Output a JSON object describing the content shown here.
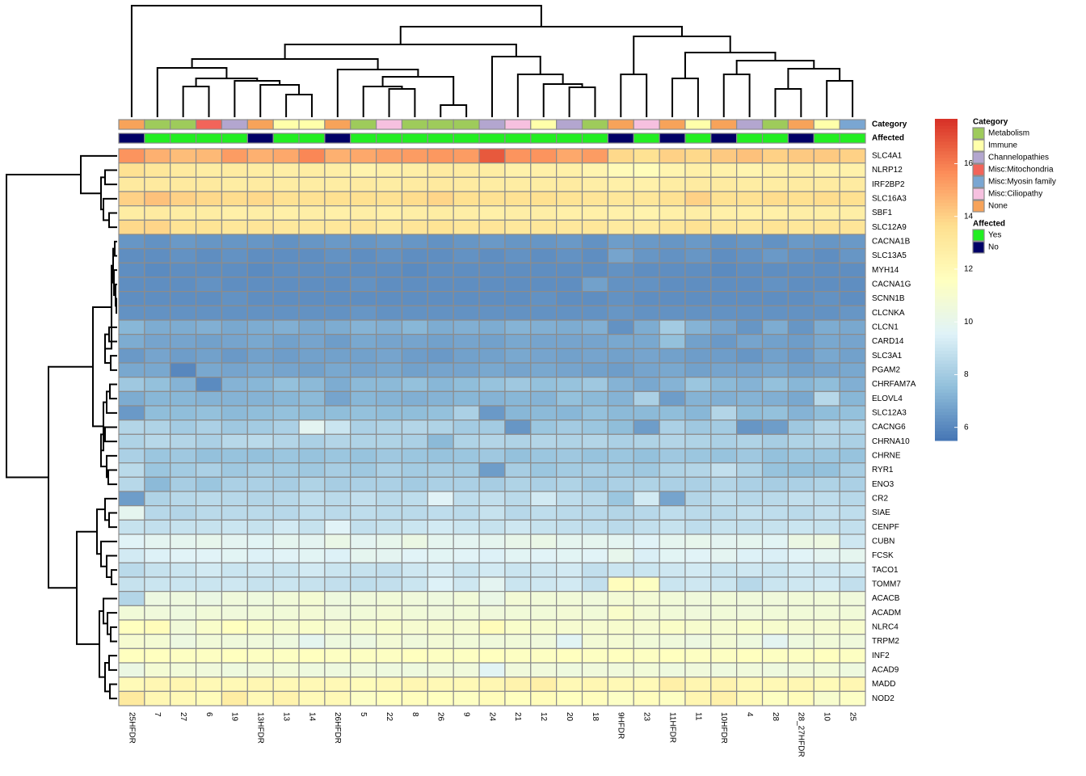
{
  "chart_data": {
    "type": "heatmap",
    "columns": [
      "25HFDR",
      "7",
      "27",
      "6",
      "19",
      "13HFDR",
      "13",
      "14",
      "26HFDR",
      "5",
      "22",
      "8",
      "26",
      "9",
      "24",
      "21",
      "12",
      "20",
      "18",
      "9HFDR",
      "23",
      "11HFDR",
      "11",
      "10HFDR",
      "4",
      "28",
      "28_27HFDR",
      "10",
      "25"
    ],
    "rows": [
      "SLC4A1",
      "NLRP12",
      "IRF2BP2",
      "SLC16A3",
      "SBF1",
      "SLC12A9",
      "CACNA1B",
      "SLC13A5",
      "MYH14",
      "CACNA1G",
      "SCNN1B",
      "CLCNKA",
      "CLCN1",
      "CARD14",
      "SLC3A1",
      "PGAM2",
      "CHRFAM7A",
      "ELOVL4",
      "SLC12A3",
      "CACNG6",
      "CHRNA10",
      "CHRNE",
      "RYR1",
      "ENO3",
      "CR2",
      "SIAE",
      "CENPF",
      "CUBN",
      "FCSK",
      "TACO1",
      "TOMM7",
      "ACACB",
      "ACADM",
      "NLRC4",
      "TRPM2",
      "INF2",
      "ACAD9",
      "MADD",
      "NOD2"
    ],
    "values": [
      [
        15.5,
        14.8,
        14.5,
        14.6,
        15.3,
        14.8,
        15.0,
        15.8,
        14.8,
        15.0,
        15.2,
        15.3,
        15.4,
        15.3,
        16.8,
        15.5,
        15.5,
        15.0,
        15.3,
        13.8,
        13.5,
        14.0,
        13.8,
        14.2,
        14.4,
        14.0,
        14.2,
        14.2,
        14.0
      ],
      [
        13.5,
        13.2,
        13.0,
        12.8,
        12.9,
        12.8,
        12.7,
        12.8,
        12.7,
        12.4,
        12.6,
        12.7,
        12.9,
        12.9,
        12.8,
        12.5,
        12.6,
        12.6,
        12.3,
        11.9,
        11.8,
        12.3,
        12.6,
        12.5,
        12.3,
        12.6,
        12.7,
        12.5,
        12.5
      ],
      [
        13.0,
        13.0,
        13.0,
        13.0,
        12.8,
        12.9,
        12.8,
        12.8,
        12.8,
        12.9,
        12.8,
        12.9,
        13.0,
        12.9,
        12.8,
        12.8,
        12.8,
        12.9,
        12.7,
        12.6,
        12.5,
        12.8,
        12.9,
        12.9,
        12.8,
        12.8,
        12.9,
        12.9,
        12.9
      ],
      [
        14.0,
        14.4,
        14.0,
        13.8,
        13.7,
        13.8,
        13.5,
        13.5,
        13.6,
        13.6,
        13.5,
        13.7,
        13.9,
        13.6,
        13.5,
        13.5,
        13.6,
        13.4,
        13.3,
        13.2,
        13.2,
        13.5,
        14.0,
        13.5,
        13.5,
        13.7,
        13.6,
        13.7,
        13.6
      ],
      [
        12.8,
        12.9,
        12.8,
        12.8,
        12.6,
        12.7,
        12.6,
        12.7,
        12.6,
        12.7,
        12.6,
        12.7,
        12.8,
        12.7,
        12.6,
        12.7,
        12.7,
        12.6,
        12.6,
        12.5,
        12.4,
        12.6,
        12.7,
        12.6,
        12.6,
        12.6,
        12.7,
        12.7,
        12.7
      ],
      [
        13.8,
        13.9,
        13.4,
        13.4,
        13.2,
        13.3,
        13.1,
        13.1,
        13.2,
        13.3,
        13.0,
        13.3,
        13.4,
        13.2,
        13.3,
        13.1,
        13.2,
        13.1,
        13.2,
        13.0,
        12.9,
        13.2,
        13.5,
        13.2,
        13.1,
        13.4,
        13.2,
        13.3,
        13.3
      ],
      [
        6.4,
        6.3,
        6.5,
        6.4,
        6.4,
        6.4,
        6.3,
        6.4,
        6.5,
        6.4,
        6.5,
        6.4,
        6.3,
        6.4,
        6.5,
        6.4,
        6.4,
        6.5,
        6.3,
        6.6,
        6.5,
        6.4,
        6.5,
        6.3,
        6.4,
        6.3,
        6.5,
        6.4,
        6.5
      ],
      [
        6.2,
        6.2,
        6.3,
        6.2,
        6.3,
        6.2,
        6.2,
        6.2,
        6.3,
        6.2,
        6.3,
        6.2,
        6.2,
        6.3,
        6.2,
        6.3,
        6.2,
        6.3,
        6.2,
        6.8,
        6.4,
        6.3,
        6.4,
        6.2,
        6.3,
        6.5,
        6.3,
        6.2,
        6.4
      ],
      [
        6.2,
        6.1,
        6.2,
        6.2,
        6.2,
        6.1,
        6.2,
        6.2,
        6.2,
        6.2,
        6.2,
        6.1,
        6.2,
        6.2,
        6.2,
        6.2,
        6.2,
        6.2,
        6.2,
        6.3,
        6.2,
        6.2,
        6.2,
        6.1,
        6.2,
        6.2,
        6.2,
        6.2,
        6.2
      ],
      [
        6.2,
        6.2,
        6.2,
        6.3,
        6.2,
        6.2,
        6.2,
        6.2,
        6.2,
        6.3,
        6.2,
        6.2,
        6.2,
        6.2,
        6.2,
        6.2,
        6.2,
        6.2,
        6.7,
        6.3,
        6.3,
        6.2,
        6.2,
        6.2,
        6.2,
        6.3,
        6.2,
        6.2,
        6.2
      ],
      [
        6.2,
        6.2,
        6.2,
        6.2,
        6.3,
        6.2,
        6.2,
        6.2,
        6.2,
        6.2,
        6.2,
        6.2,
        6.2,
        6.2,
        6.2,
        6.2,
        6.3,
        6.2,
        6.2,
        6.3,
        6.2,
        6.2,
        6.2,
        6.2,
        6.2,
        6.2,
        6.2,
        6.3,
        6.2
      ],
      [
        6.3,
        6.3,
        6.3,
        6.3,
        6.3,
        6.3,
        6.3,
        6.3,
        6.3,
        6.4,
        6.3,
        6.3,
        6.3,
        6.3,
        6.3,
        6.3,
        6.3,
        6.3,
        6.3,
        6.4,
        6.3,
        6.3,
        6.3,
        6.3,
        6.3,
        6.3,
        6.3,
        6.3,
        6.4
      ],
      [
        7.3,
        7.0,
        7.0,
        7.1,
        6.9,
        7.0,
        7.1,
        6.9,
        7.0,
        7.2,
        7.1,
        7.3,
        7.0,
        7.1,
        7.0,
        7.2,
        7.1,
        7.0,
        7.1,
        6.3,
        7.0,
        8.0,
        7.2,
        6.8,
        6.4,
        7.0,
        6.4,
        7.0,
        6.9
      ],
      [
        7.0,
        6.8,
        6.8,
        6.7,
        6.8,
        6.9,
        6.7,
        6.8,
        6.6,
        6.9,
        6.8,
        6.8,
        6.7,
        6.8,
        6.7,
        6.9,
        6.8,
        6.8,
        6.8,
        6.9,
        6.9,
        7.6,
        6.7,
        6.5,
        6.8,
        6.7,
        6.6,
        6.9,
        6.8
      ],
      [
        6.5,
        6.8,
        6.6,
        6.7,
        6.5,
        6.7,
        6.6,
        6.7,
        6.7,
        6.7,
        6.8,
        6.6,
        6.5,
        6.7,
        6.7,
        6.9,
        6.8,
        6.7,
        6.8,
        6.7,
        6.8,
        6.7,
        6.6,
        6.6,
        6.4,
        6.7,
        6.5,
        6.9,
        6.7
      ],
      [
        6.9,
        6.9,
        6.0,
        6.9,
        6.8,
        6.9,
        6.8,
        6.7,
        6.9,
        6.8,
        6.9,
        6.7,
        6.8,
        6.8,
        6.9,
        6.8,
        6.9,
        6.8,
        6.7,
        6.6,
        6.8,
        6.9,
        6.7,
        6.8,
        6.8,
        6.9,
        6.7,
        6.8,
        6.9
      ],
      [
        7.9,
        7.6,
        7.2,
        6.1,
        7.2,
        7.3,
        7.6,
        7.4,
        7.0,
        7.4,
        7.4,
        7.6,
        7.3,
        7.5,
        7.7,
        7.9,
        7.6,
        7.7,
        7.9,
        7.2,
        6.9,
        7.2,
        7.8,
        7.4,
        7.2,
        7.6,
        7.3,
        7.5,
        7.1
      ],
      [
        7.0,
        7.3,
        7.3,
        7.2,
        7.2,
        7.2,
        7.3,
        7.4,
        6.8,
        7.3,
        7.2,
        7.1,
        7.2,
        7.3,
        7.2,
        7.3,
        7.2,
        7.6,
        7.4,
        7.2,
        8.2,
        6.6,
        7.2,
        7.1,
        7.2,
        7.1,
        6.9,
        8.5,
        7.3
      ],
      [
        6.5,
        7.5,
        7.5,
        7.6,
        7.4,
        7.5,
        7.6,
        7.5,
        7.5,
        7.6,
        7.5,
        7.5,
        7.6,
        8.2,
        6.5,
        7.3,
        7.4,
        7.3,
        7.6,
        7.4,
        7.4,
        7.5,
        7.3,
        8.4,
        7.5,
        7.6,
        7.2,
        7.5,
        7.6
      ],
      [
        8.4,
        8.3,
        8.0,
        8.2,
        7.9,
        8.0,
        8.2,
        9.8,
        9.0,
        8.2,
        8.3,
        8.4,
        8.3,
        8.0,
        8.0,
        6.4,
        7.8,
        8.0,
        7.8,
        7.5,
        6.6,
        8.2,
        7.9,
        8.0,
        6.4,
        6.6,
        7.9,
        8.4,
        8.3
      ],
      [
        8.3,
        8.5,
        8.4,
        8.2,
        8.5,
        8.6,
        8.4,
        8.2,
        8.4,
        8.3,
        8.3,
        8.2,
        7.4,
        8.3,
        8.4,
        8.3,
        8.4,
        8.3,
        8.4,
        8.2,
        8.3,
        8.4,
        8.3,
        8.2,
        8.3,
        8.1,
        8.3,
        8.4,
        8.2
      ],
      [
        8.2,
        7.8,
        7.9,
        7.6,
        7.7,
        7.6,
        7.8,
        7.7,
        7.8,
        7.7,
        7.9,
        7.8,
        7.7,
        7.8,
        7.9,
        7.6,
        7.8,
        7.9,
        7.7,
        7.8,
        7.6,
        7.9,
        7.8,
        7.7,
        7.9,
        7.6,
        7.8,
        7.8,
        7.7
      ],
      [
        8.6,
        7.8,
        8.0,
        8.2,
        7.9,
        8.1,
        8.0,
        7.9,
        8.1,
        7.9,
        8.2,
        8.0,
        8.1,
        8.0,
        6.6,
        8.1,
        7.8,
        8.0,
        8.1,
        8.0,
        7.9,
        8.3,
        8.4,
        8.8,
        8.3,
        7.7,
        7.6,
        7.6,
        8.1
      ],
      [
        8.5,
        7.4,
        8.1,
        7.8,
        8.2,
        8.2,
        8.1,
        8.3,
        8.1,
        8.2,
        8.2,
        8.0,
        8.2,
        8.2,
        8.1,
        8.3,
        8.2,
        8.3,
        8.0,
        8.2,
        8.3,
        8.2,
        8.2,
        8.4,
        8.2,
        8.1,
        8.2,
        8.3,
        8.2
      ],
      [
        6.6,
        8.3,
        8.5,
        8.6,
        8.5,
        8.4,
        8.5,
        8.7,
        8.6,
        8.8,
        8.6,
        8.7,
        9.6,
        8.7,
        8.8,
        8.6,
        9.2,
        8.7,
        8.6,
        7.8,
        9.2,
        6.8,
        8.4,
        8.7,
        8.5,
        8.6,
        8.8,
        8.7,
        8.5
      ],
      [
        9.9,
        8.5,
        8.4,
        8.6,
        8.6,
        8.6,
        8.5,
        8.7,
        8.6,
        8.7,
        8.6,
        8.6,
        8.7,
        8.6,
        8.9,
        8.5,
        8.7,
        8.6,
        8.5,
        8.4,
        8.5,
        8.7,
        8.6,
        8.6,
        8.8,
        8.7,
        8.6,
        8.8,
        8.7
      ],
      [
        8.9,
        8.8,
        8.9,
        8.9,
        9.0,
        8.9,
        9.2,
        8.9,
        9.6,
        8.8,
        8.9,
        9.0,
        9.2,
        9.0,
        8.9,
        9.1,
        8.9,
        8.8,
        8.7,
        8.6,
        8.8,
        8.9,
        8.7,
        8.9,
        8.8,
        8.9,
        9.0,
        8.9,
        8.8
      ],
      [
        9.6,
        9.8,
        9.9,
        10.0,
        9.8,
        9.7,
        9.9,
        9.8,
        10.2,
        9.8,
        10.0,
        10.3,
        9.9,
        9.8,
        9.9,
        10.1,
        10.2,
        9.9,
        9.9,
        9.8,
        9.6,
        9.9,
        10.0,
        9.8,
        9.9,
        9.7,
        10.3,
        10.4,
        9.1
      ],
      [
        9.2,
        9.5,
        9.6,
        9.6,
        9.7,
        9.5,
        9.6,
        9.7,
        9.5,
        9.9,
        9.8,
        9.6,
        9.7,
        9.6,
        9.5,
        9.7,
        9.6,
        9.7,
        9.6,
        10.0,
        9.4,
        9.7,
        9.6,
        9.8,
        9.5,
        9.4,
        9.6,
        9.8,
        9.9
      ],
      [
        8.6,
        8.9,
        9.0,
        9.2,
        9.0,
        9.1,
        9.0,
        9.2,
        9.0,
        8.9,
        8.8,
        9.1,
        9.3,
        9.0,
        9.2,
        9.0,
        9.1,
        9.2,
        8.8,
        9.0,
        9.0,
        9.1,
        9.2,
        9.0,
        9.1,
        9.0,
        9.2,
        9.1,
        9.2
      ],
      [
        8.9,
        9.0,
        9.0,
        9.0,
        9.1,
        8.9,
        9.0,
        8.9,
        8.8,
        8.7,
        8.8,
        9.0,
        9.5,
        9.1,
        9.8,
        9.0,
        9.1,
        9.2,
        8.8,
        11.7,
        11.5,
        9.0,
        9.1,
        9.0,
        8.5,
        9.0,
        9.1,
        9.2,
        8.8
      ],
      [
        8.4,
        10.4,
        10.5,
        10.3,
        10.6,
        10.5,
        10.7,
        10.9,
        10.5,
        10.6,
        10.7,
        10.6,
        10.5,
        10.7,
        10.2,
        10.8,
        10.7,
        10.7,
        10.6,
        10.8,
        10.8,
        10.7,
        10.6,
        10.7,
        10.6,
        10.6,
        10.7,
        10.7,
        10.6
      ],
      [
        10.7,
        10.6,
        10.5,
        10.7,
        10.6,
        10.7,
        10.7,
        10.8,
        10.6,
        10.7,
        10.8,
        10.7,
        10.6,
        10.7,
        10.6,
        10.7,
        10.7,
        10.8,
        10.7,
        11.2,
        10.8,
        10.7,
        10.6,
        10.7,
        10.6,
        10.7,
        10.7,
        10.7,
        10.7
      ],
      [
        11.6,
        11.8,
        10.7,
        11.2,
        11.6,
        11.3,
        11.1,
        11.2,
        11.0,
        11.1,
        11.2,
        11.0,
        11.1,
        11.0,
        11.8,
        11.2,
        11.1,
        11.0,
        11.0,
        11.1,
        11.0,
        11.3,
        11.1,
        11.0,
        11.2,
        11.1,
        11.0,
        11.0,
        11.1
      ],
      [
        11.0,
        10.9,
        10.4,
        10.7,
        10.6,
        10.6,
        10.5,
        9.9,
        10.5,
        10.4,
        10.8,
        10.6,
        10.8,
        10.7,
        10.6,
        10.7,
        10.6,
        9.7,
        10.8,
        10.9,
        10.7,
        10.6,
        10.4,
        10.8,
        10.5,
        9.8,
        10.5,
        10.7,
        10.6
      ],
      [
        11.6,
        11.6,
        11.5,
        11.5,
        11.6,
        11.5,
        11.5,
        11.6,
        11.5,
        11.5,
        11.5,
        11.6,
        11.5,
        11.5,
        11.6,
        11.5,
        11.5,
        11.6,
        11.5,
        11.6,
        11.5,
        11.6,
        11.5,
        11.5,
        11.6,
        11.5,
        11.5,
        11.6,
        11.5
      ],
      [
        10.3,
        10.9,
        10.7,
        10.6,
        10.5,
        10.6,
        10.7,
        10.5,
        10.5,
        10.6,
        10.5,
        10.5,
        10.6,
        10.6,
        9.7,
        10.6,
        10.6,
        10.5,
        10.6,
        10.6,
        10.7,
        10.5,
        10.6,
        10.5,
        10.6,
        10.5,
        10.6,
        10.7,
        10.5
      ],
      [
        11.9,
        12.1,
        12.2,
        12.0,
        12.0,
        12.1,
        12.0,
        12.0,
        12.0,
        11.8,
        12.0,
        12.1,
        12.0,
        12.0,
        12.1,
        12.4,
        12.6,
        12.0,
        12.1,
        12.0,
        11.9,
        12.6,
        12.2,
        12.3,
        12.0,
        12.0,
        12.1,
        11.9,
        12.1
      ],
      [
        13.0,
        12.1,
        12.0,
        11.8,
        12.8,
        12.0,
        12.4,
        11.9,
        12.0,
        11.4,
        11.6,
        11.7,
        11.6,
        11.5,
        11.8,
        11.6,
        11.8,
        11.6,
        11.7,
        11.4,
        11.7,
        11.5,
        12.2,
        12.5,
        11.9,
        11.5,
        11.8,
        11.1,
        11.4
      ]
    ],
    "clim": [
      5.5,
      17.7
    ],
    "colorbar_ticks": [
      6,
      8,
      10,
      12,
      14,
      16
    ],
    "colormap": [
      "#4575B4",
      "#91BFDB",
      "#E0F3F8",
      "#FFFFBF",
      "#FEE090",
      "#FC8D59",
      "#D73027"
    ],
    "cell_border": "#8c8c8c",
    "annotations": [
      {
        "name": "Category",
        "values": [
          "None",
          "Metabolism",
          "Metabolism",
          "Misc:Mitochondria",
          "Channelopathies",
          "None",
          "Immune",
          "Immune",
          "None",
          "Metabolism",
          "Misc:Ciliopathy",
          "Metabolism",
          "Metabolism",
          "Metabolism",
          "Channelopathies",
          "Misc:Ciliopathy",
          "Immune",
          "Channelopathies",
          "Metabolism",
          "None",
          "Misc:Ciliopathy",
          "None",
          "Immune",
          "None",
          "Channelopathies",
          "Metabolism",
          "None",
          "Immune",
          "Misc:Myosin family"
        ],
        "legend": [
          {
            "name": "Metabolism",
            "color": "#9ECB5B"
          },
          {
            "name": "Immune",
            "color": "#FFFFAA"
          },
          {
            "name": "Channelopathies",
            "color": "#B3A6CF"
          },
          {
            "name": "Misc:Mitochondria",
            "color": "#F2645A"
          },
          {
            "name": "Misc:Myosin family",
            "color": "#7AA6D2"
          },
          {
            "name": "Misc:Ciliopathy",
            "color": "#F6C0DF"
          },
          {
            "name": "None",
            "color": "#F7A35A"
          }
        ]
      },
      {
        "name": "Affected",
        "values": [
          "No",
          "Yes",
          "Yes",
          "Yes",
          "Yes",
          "No",
          "Yes",
          "Yes",
          "No",
          "Yes",
          "Yes",
          "Yes",
          "Yes",
          "Yes",
          "Yes",
          "Yes",
          "Yes",
          "Yes",
          "Yes",
          "No",
          "Yes",
          "No",
          "Yes",
          "No",
          "Yes",
          "Yes",
          "No",
          "Yes",
          "Yes"
        ],
        "legend": [
          {
            "name": "Yes",
            "color": "#22EE22"
          },
          {
            "name": "No",
            "color": "#000066"
          }
        ]
      }
    ]
  }
}
